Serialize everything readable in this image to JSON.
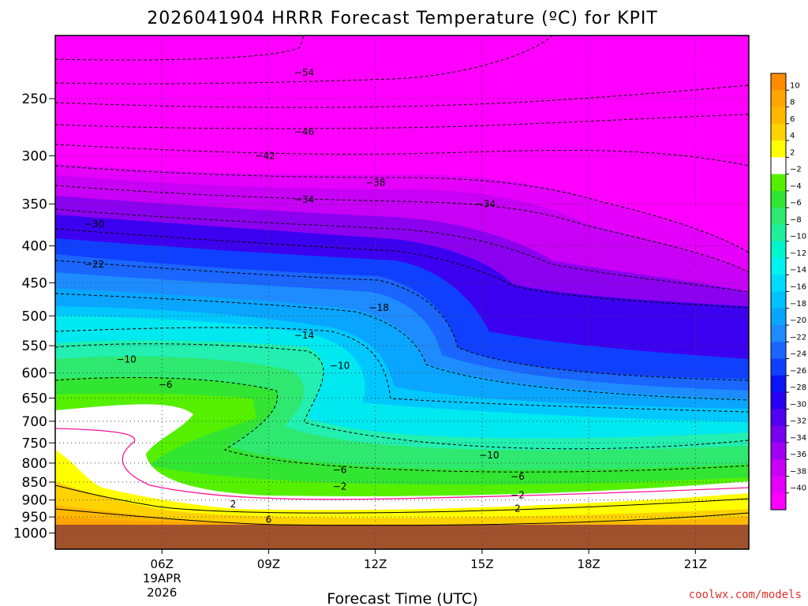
{
  "chart_data": {
    "type": "heatmap",
    "title": "2026041904 HRRR Forecast Temperature (ºC) for KPIT",
    "xlabel": "Forecast Time (UTC)",
    "ylabel": "",
    "credit": "coolwx.com/models",
    "y_axis": {
      "scale": "log-pressure",
      "range": [
        1000,
        200
      ],
      "ticks": [
        "250",
        "300",
        "350",
        "400",
        "450",
        "500",
        "550",
        "600",
        "650",
        "700",
        "750",
        "800",
        "850",
        "900",
        "950",
        "1000"
      ]
    },
    "x_axis": {
      "range": [
        3,
        22.5
      ],
      "ticks": [
        {
          "value": 6,
          "label": "06Z",
          "sub1": "19APR",
          "sub2": "2026"
        },
        {
          "value": 9,
          "label": "09Z",
          "sub1": "",
          "sub2": ""
        },
        {
          "value": 12,
          "label": "12Z",
          "sub1": "",
          "sub2": ""
        },
        {
          "value": 15,
          "label": "15Z",
          "sub1": "",
          "sub2": ""
        },
        {
          "value": 18,
          "label": "18Z",
          "sub1": "",
          "sub2": ""
        },
        {
          "value": 21,
          "label": "21Z",
          "sub1": "",
          "sub2": ""
        }
      ]
    },
    "grid": true,
    "colorbar": {
      "placement": "right",
      "labels": [
        "10",
        "8",
        "6",
        "4",
        "2",
        "−2",
        "−4",
        "−6",
        "−8",
        "−10",
        "−12",
        "−14",
        "−16",
        "−18",
        "−20",
        "−22",
        "−24",
        "−26",
        "−28",
        "−30",
        "−32",
        "−34",
        "−36",
        "−38",
        "−40"
      ],
      "colors": [
        "#ff8c00",
        "#ffa500",
        "#ffb800",
        "#ffd200",
        "#ffff00",
        "#ffffff",
        "#55f000",
        "#33e533",
        "#2ee870",
        "#22ef9a",
        "#00f5cc",
        "#00f2f2",
        "#00dcff",
        "#00c0ff",
        "#0aa5ff",
        "#1e8cff",
        "#1a66ff",
        "#1040ff",
        "#0a14f5",
        "#2a00f0",
        "#5200f0",
        "#7a00f0",
        "#a000f2",
        "#c800f5",
        "#e400fa",
        "#ff00ff"
      ]
    },
    "ground_color": "#a0522d",
    "contour_labels": [
      {
        "text": "−54",
        "x": 10.0,
        "p": 230
      },
      {
        "text": "−46",
        "x": 10.0,
        "p": 278
      },
      {
        "text": "−42",
        "x": 8.9,
        "p": 300
      },
      {
        "text": "−38",
        "x": 12.0,
        "p": 327
      },
      {
        "text": "−34",
        "x": 10.0,
        "p": 345
      },
      {
        "text": "−34",
        "x": 15.1,
        "p": 350
      },
      {
        "text": "−30",
        "x": 4.1,
        "p": 373
      },
      {
        "text": "−22",
        "x": 4.1,
        "p": 424
      },
      {
        "text": "−18",
        "x": 12.1,
        "p": 487
      },
      {
        "text": "−14",
        "x": 10.0,
        "p": 532
      },
      {
        "text": "−10",
        "x": 5.0,
        "p": 575
      },
      {
        "text": "−10",
        "x": 11.0,
        "p": 586
      },
      {
        "text": "−6",
        "x": 6.1,
        "p": 623
      },
      {
        "text": "−10",
        "x": 15.2,
        "p": 780
      },
      {
        "text": "−6",
        "x": 11.0,
        "p": 818
      },
      {
        "text": "−6",
        "x": 16.0,
        "p": 835
      },
      {
        "text": "−2",
        "x": 11.0,
        "p": 862
      },
      {
        "text": "−2",
        "x": 16.0,
        "p": 886
      },
      {
        "text": "2",
        "x": 8.0,
        "p": 912
      },
      {
        "text": "2",
        "x": 16.0,
        "p": 925
      },
      {
        "text": "6",
        "x": 9.0,
        "p": 958
      }
    ]
  }
}
